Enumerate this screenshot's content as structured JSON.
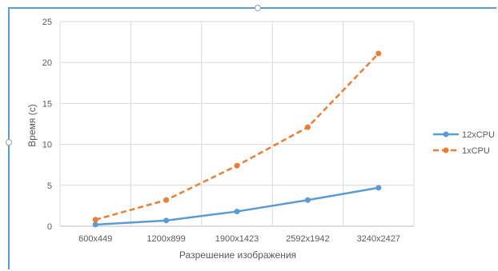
{
  "chart_data": {
    "type": "line",
    "categories": [
      "600x449",
      "1200x899",
      "1900x1423",
      "2592x1942",
      "3240x2427"
    ],
    "series": [
      {
        "name": "12xCPU",
        "values": [
          0.2,
          0.7,
          1.8,
          3.2,
          4.7
        ],
        "color": "#5b9bd5",
        "dash": "solid"
      },
      {
        "name": "1xCPU",
        "values": [
          0.8,
          3.2,
          7.4,
          12.1,
          21.1
        ],
        "color": "#ed7d31",
        "dash": "dashed"
      }
    ],
    "xlabel": "Разрешение изображения",
    "ylabel": "Время (с)",
    "ylim": [
      0,
      25
    ],
    "yticks": [
      0,
      5,
      10,
      15,
      20,
      25
    ],
    "grid": true,
    "legend": "right"
  }
}
